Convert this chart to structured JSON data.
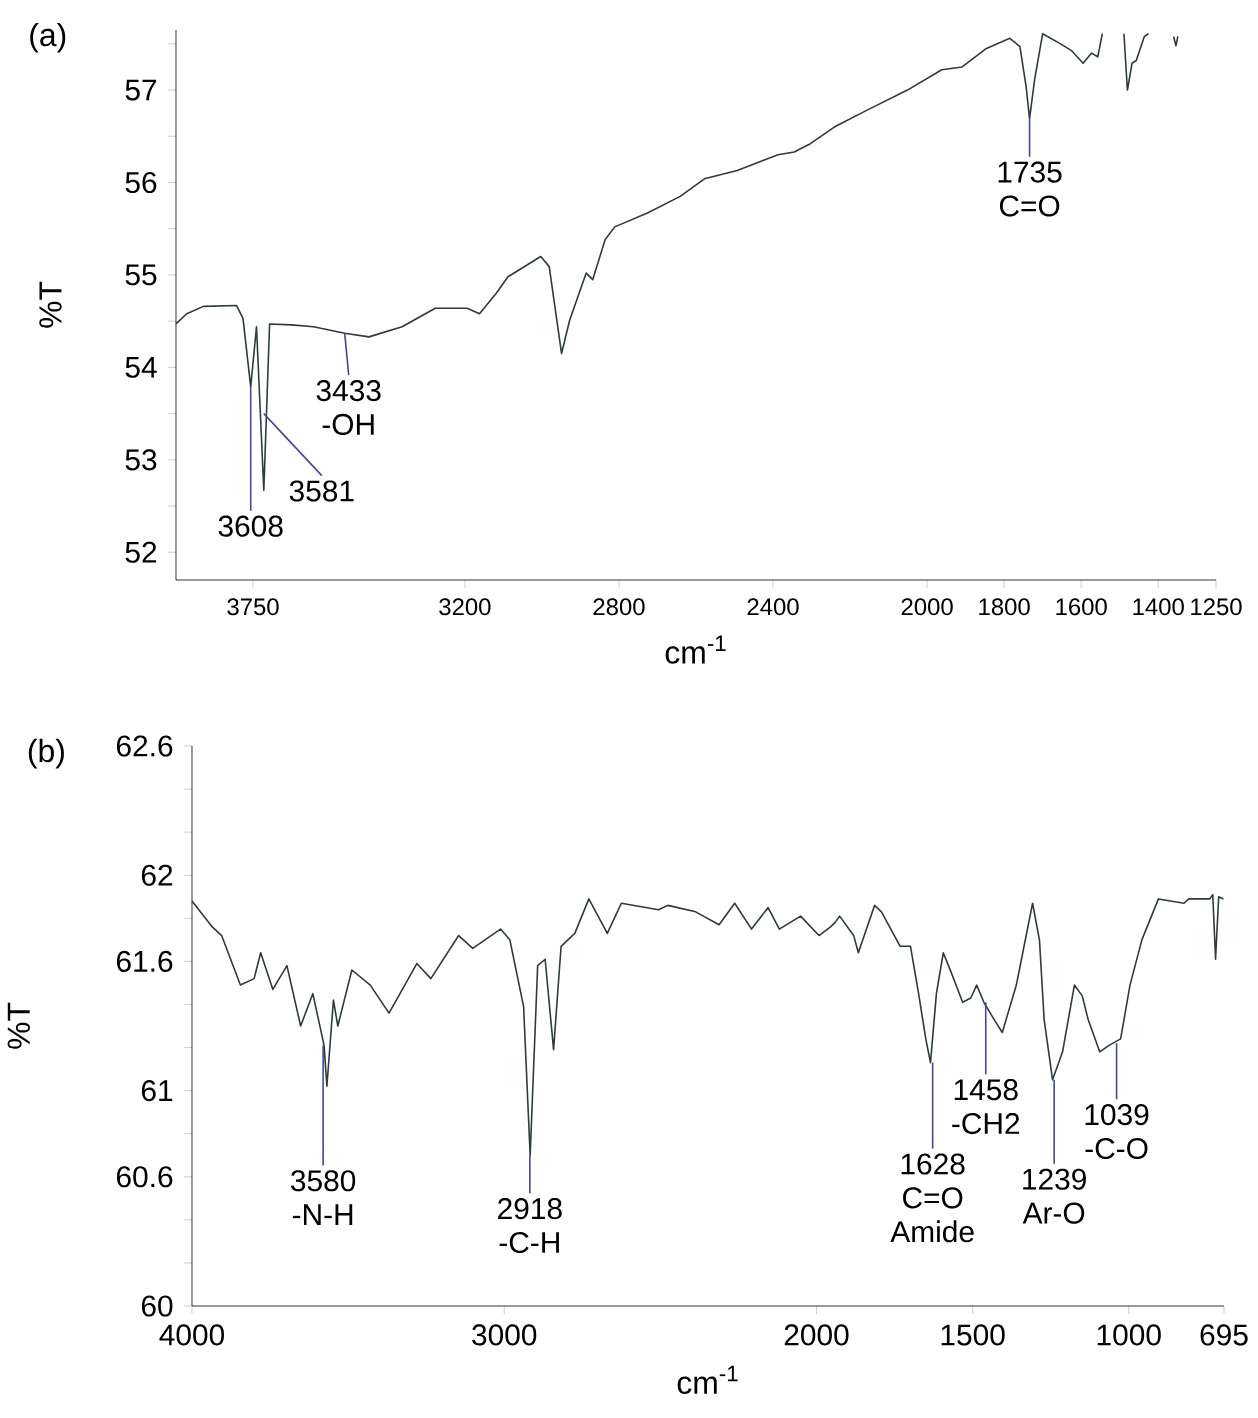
{
  "chart_data": [
    {
      "type": "line",
      "title": "(a)",
      "xlabel": "cm$^{-1}$",
      "ylabel": "%T",
      "color": "#2e3b3b",
      "x": [
        3950,
        3922,
        3879,
        3793,
        3776,
        3756,
        3741,
        3722,
        3707,
        3650,
        3593,
        3512,
        3449,
        3363,
        3277,
        3194,
        3162,
        3119,
        3088,
        3003,
        2981,
        2949,
        2928,
        2885,
        2868,
        2836,
        2811,
        2726,
        2641,
        2578,
        2493,
        2387,
        2345,
        2303,
        2241,
        2157,
        2051,
        1962,
        1909,
        1846,
        1785,
        1759,
        1743,
        1734,
        1721,
        1700,
        1658,
        1626,
        1595,
        1573,
        1557,
        1545,
        1520,
        1489,
        1480,
        1468,
        1457,
        1436,
        1425,
        1390,
        1360,
        1354,
        1349
      ],
      "values": [
        54.47,
        54.58,
        54.66,
        54.67,
        54.53,
        53.79,
        54.44,
        52.67,
        54.47,
        54.46,
        54.44,
        54.37,
        54.33,
        54.44,
        54.64,
        54.64,
        54.58,
        54.8,
        54.98,
        55.2,
        55.09,
        54.15,
        54.51,
        55.02,
        54.95,
        55.38,
        55.52,
        55.67,
        55.85,
        56.04,
        56.13,
        56.3,
        56.33,
        56.42,
        56.6,
        56.78,
        57.0,
        57.22,
        57.25,
        57.45,
        57.56,
        57.47,
        57.04,
        56.69,
        57.11,
        57.61,
        57.51,
        57.43,
        57.29,
        57.4,
        57.36,
        57.61,
        null,
        57.61,
        57.0,
        57.29,
        57.32,
        57.58,
        57.61,
        null,
        57.58,
        57.48,
        57.58
      ],
      "xlim": [
        3950,
        1250
      ],
      "ylim": [
        51.7,
        57.65
      ],
      "xticks": [
        3750,
        3200,
        2800,
        2400,
        2000,
        1800,
        1600,
        1400,
        1250
      ],
      "yticks": [
        52,
        {
          "value": 52.5,
          "label": null
        },
        53,
        {
          "value": 53.5,
          "label": null
        },
        54,
        {
          "value": 54.5,
          "label": null
        },
        55,
        {
          "value": 55.5,
          "label": null
        },
        56,
        {
          "value": 56.5,
          "label": null
        },
        57,
        {
          "value": 57.5,
          "label": null
        }
      ],
      "annotations": [
        {
          "text": "3608",
          "x": 3756,
          "y": 53.79
        },
        {
          "text": "3581",
          "x": 3722,
          "y": 53.5
        },
        {
          "text": "3433 -OH",
          "x": 3512,
          "y": 54.37
        },
        {
          "text": "1735 C=O",
          "x": 1734,
          "y": 56.69
        }
      ]
    },
    {
      "type": "line",
      "title": "(b)",
      "xlabel": "cm$^{-1}$",
      "ylabel": "%T",
      "color": "#2e3b3b",
      "x": [
        4000,
        3935,
        3905,
        3845,
        3801,
        3780,
        3741,
        3696,
        3652,
        3613,
        3577,
        3568,
        3547,
        3533,
        3488,
        3429,
        3369,
        3280,
        3235,
        3146,
        3101,
        3012,
        2982,
        2938,
        2917,
        2893,
        2869,
        2842,
        2818,
        2774,
        2729,
        2670,
        2625,
        2506,
        2476,
        2387,
        2312,
        2262,
        2208,
        2155,
        2119,
        2051,
        1992,
        1955,
        1941,
        1926,
        1881,
        1866,
        1814,
        1792,
        1732,
        1699,
        1673,
        1650,
        1635,
        1616,
        1594,
        1569,
        1532,
        1506,
        1487,
        1464,
        1427,
        1405,
        1360,
        1308,
        1286,
        1271,
        1244,
        1212,
        1174,
        1149,
        1130,
        1093,
        1063,
        1026,
        996,
        958,
        905,
        823,
        808,
        741,
        731,
        722,
        712,
        697
      ],
      "values": [
        61.88,
        61.76,
        61.72,
        61.49,
        61.52,
        61.64,
        61.47,
        61.58,
        61.3,
        61.45,
        61.21,
        61.02,
        61.42,
        61.3,
        61.56,
        61.49,
        61.36,
        61.59,
        61.52,
        61.72,
        61.66,
        61.75,
        61.7,
        61.39,
        60.7,
        61.58,
        61.61,
        61.19,
        61.67,
        61.73,
        61.89,
        61.73,
        61.87,
        61.84,
        61.86,
        61.83,
        61.77,
        61.87,
        61.75,
        61.85,
        61.75,
        61.81,
        61.72,
        61.76,
        61.78,
        61.81,
        61.72,
        61.64,
        61.86,
        61.83,
        61.67,
        61.67,
        61.45,
        61.24,
        61.13,
        61.45,
        61.64,
        61.55,
        61.41,
        61.43,
        61.49,
        61.41,
        61.32,
        61.27,
        61.49,
        61.87,
        61.7,
        61.33,
        61.05,
        61.18,
        61.49,
        61.44,
        61.33,
        61.18,
        61.21,
        61.24,
        61.49,
        61.7,
        61.89,
        61.87,
        61.89,
        61.89,
        61.91,
        61.61,
        61.9,
        61.89
      ],
      "xlim": [
        4000,
        695
      ],
      "ylim": [
        60,
        62.6
      ],
      "xticks": [
        4000,
        3000,
        2000,
        1500,
        1000,
        695
      ],
      "yticks": [
        60,
        {
          "value": 60.2,
          "label": null
        },
        {
          "value": 60.4,
          "label": null
        },
        60.6,
        {
          "value": 60.8,
          "label": null
        },
        61,
        {
          "value": 61.2,
          "label": null
        },
        {
          "value": 61.4,
          "label": null
        },
        61.6,
        {
          "value": 61.8,
          "label": null
        },
        62,
        {
          "value": 62.2,
          "label": null
        },
        {
          "value": 62.4,
          "label": null
        },
        62.6
      ],
      "annotations": [
        {
          "text": "3580 -N-H",
          "x": 3580,
          "y": 61.21
        },
        {
          "text": "2918 -C-H",
          "x": 2918,
          "y": 60.7
        },
        {
          "text": "1628 C=O Amide",
          "x": 1628,
          "y": 61.13
        },
        {
          "text": "1458 -CH2",
          "x": 1458,
          "y": 61.41
        },
        {
          "text": "1239 Ar-O",
          "x": 1239,
          "y": 61.05
        },
        {
          "text": "1039 -C-O",
          "x": 1039,
          "y": 61.22
        }
      ]
    }
  ]
}
